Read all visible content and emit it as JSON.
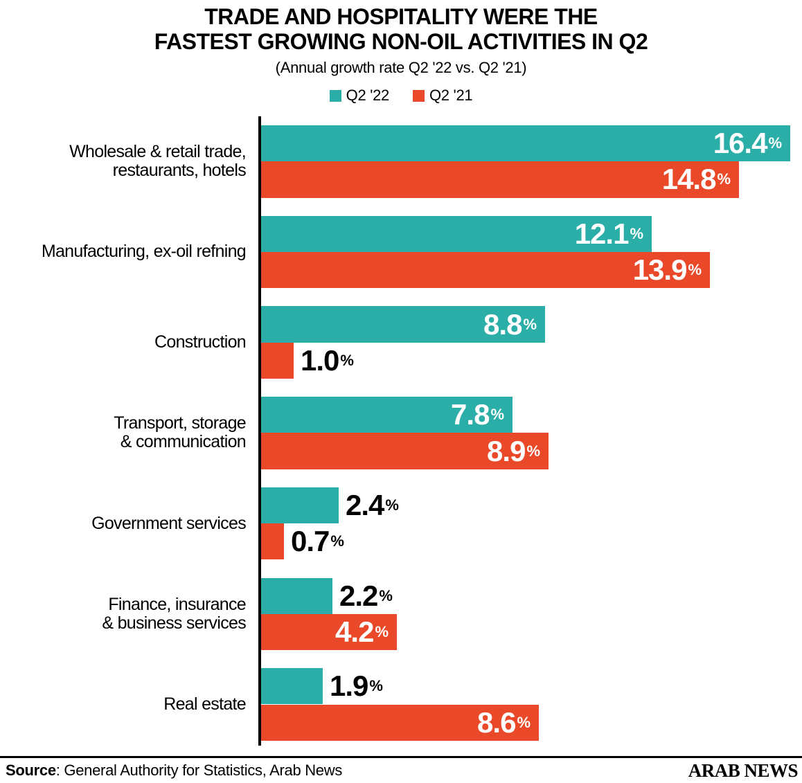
{
  "title": {
    "line1": "TRADE AND HOSPITALITY WERE THE",
    "line2": "FASTEST GROWING NON-OIL ACTIVITIES IN Q2"
  },
  "subtitle": "(Annual growth rate Q2 '22 vs. Q2 '21)",
  "legend": [
    {
      "label": "Q2 '22",
      "color": "#2BADA8"
    },
    {
      "label": "Q2 '21",
      "color": "#E94928"
    }
  ],
  "colors": {
    "q2_22": "#2BADA8",
    "q2_21": "#E94928",
    "axis": "#000000",
    "label_inside": "#FFFFFF",
    "label_outside": "#000000"
  },
  "chart_data": {
    "type": "bar",
    "orientation": "horizontal",
    "title": "TRADE AND HOSPITALITY WERE THE FASTEST GROWING NON-OIL ACTIVITIES IN Q2",
    "subtitle": "(Annual growth rate Q2 '22 vs. Q2 '21)",
    "unit": "%",
    "xlim": [
      0,
      16.4
    ],
    "grid": false,
    "legend_position": "top",
    "categories": [
      "Wholesale & retail trade, restaurants, hotels",
      "Manufacturing, ex-oil refning",
      "Construction",
      "Transport, storage & communication",
      "Government services",
      "Finance, insurance & business services",
      "Real estate"
    ],
    "series": [
      {
        "name": "Q2 '22",
        "values": [
          16.4,
          12.1,
          8.8,
          7.8,
          2.4,
          2.2,
          1.9
        ]
      },
      {
        "name": "Q2 '21",
        "values": [
          14.8,
          13.9,
          1.0,
          8.9,
          0.7,
          4.2,
          8.6
        ]
      }
    ],
    "rows": [
      {
        "label_lines": [
          "Wholesale & retail trade,",
          "restaurants, hotels"
        ],
        "q2_22": 16.4,
        "q2_21": 14.8
      },
      {
        "label_lines": [
          "Manufacturing, ex-oil refning"
        ],
        "q2_22": 12.1,
        "q2_21": 13.9
      },
      {
        "label_lines": [
          "Construction"
        ],
        "q2_22": 8.8,
        "q2_21": 1.0
      },
      {
        "label_lines": [
          "Transport, storage",
          "& communication"
        ],
        "q2_22": 7.8,
        "q2_21": 8.9
      },
      {
        "label_lines": [
          "Government services"
        ],
        "q2_22": 2.4,
        "q2_21": 0.7
      },
      {
        "label_lines": [
          "Finance, insurance",
          "& business services"
        ],
        "q2_22": 2.2,
        "q2_21": 4.2
      },
      {
        "label_lines": [
          "Real estate"
        ],
        "q2_22": 1.9,
        "q2_21": 8.6
      }
    ]
  },
  "footer": {
    "source_label": "Source",
    "source_text": ": General Authority for Statistics, Arab News",
    "brand": "ARAB NEWS"
  }
}
